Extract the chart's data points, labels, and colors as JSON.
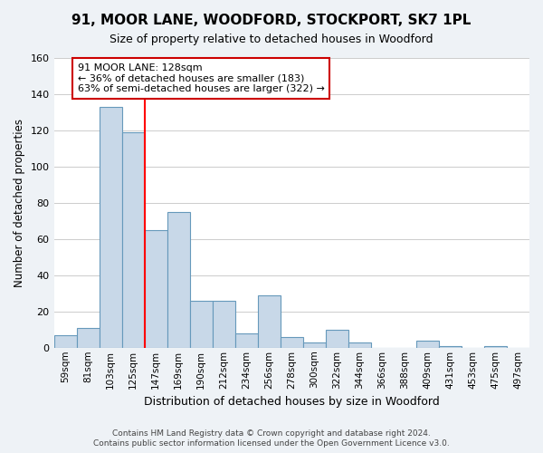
{
  "title": "91, MOOR LANE, WOODFORD, STOCKPORT, SK7 1PL",
  "subtitle": "Size of property relative to detached houses in Woodford",
  "xlabel": "Distribution of detached houses by size in Woodford",
  "ylabel": "Number of detached properties",
  "categories": [
    "59sqm",
    "81sqm",
    "103sqm",
    "125sqm",
    "147sqm",
    "169sqm",
    "190sqm",
    "212sqm",
    "234sqm",
    "256sqm",
    "278sqm",
    "300sqm",
    "322sqm",
    "344sqm",
    "366sqm",
    "388sqm",
    "409sqm",
    "431sqm",
    "453sqm",
    "475sqm",
    "497sqm"
  ],
  "values": [
    7,
    11,
    133,
    119,
    65,
    75,
    26,
    26,
    8,
    29,
    6,
    3,
    10,
    3,
    0,
    0,
    4,
    1,
    0,
    1,
    0
  ],
  "bar_color": "#c8d8e8",
  "bar_edge_color": "#6699bb",
  "red_line_index": 3,
  "ylim": [
    0,
    160
  ],
  "yticks": [
    0,
    20,
    40,
    60,
    80,
    100,
    120,
    140,
    160
  ],
  "annotation_title": "91 MOOR LANE: 128sqm",
  "annotation_line1": "← 36% of detached houses are smaller (183)",
  "annotation_line2": "63% of semi-detached houses are larger (322) →",
  "annotation_box_color": "#ffffff",
  "annotation_box_edge": "#cc0000",
  "footer_line1": "Contains HM Land Registry data © Crown copyright and database right 2024.",
  "footer_line2": "Contains public sector information licensed under the Open Government Licence v3.0.",
  "background_color": "#eef2f6",
  "plot_background": "#ffffff"
}
